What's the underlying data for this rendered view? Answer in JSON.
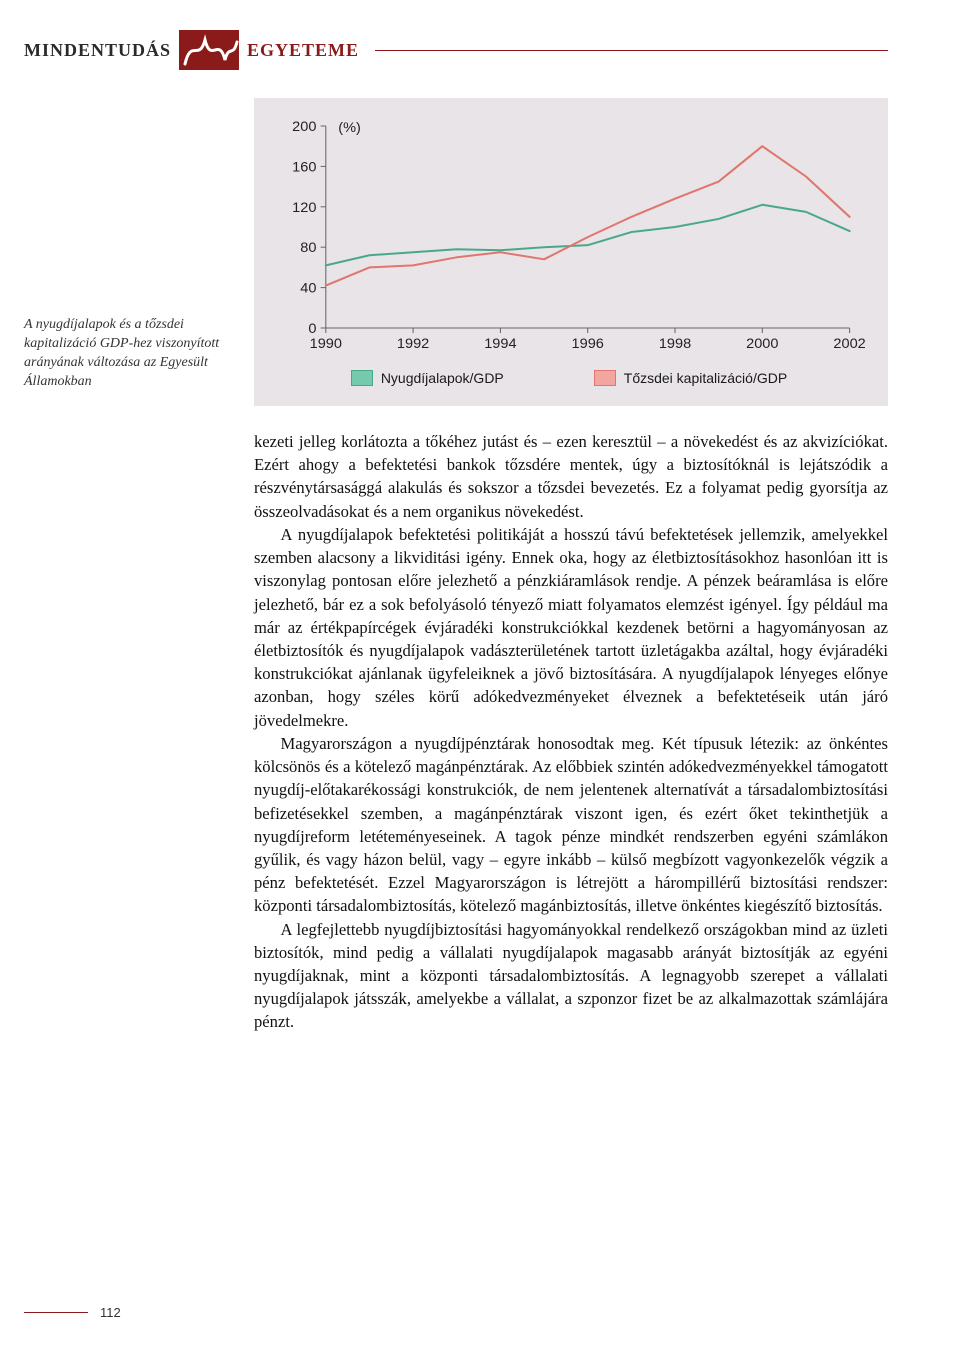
{
  "header": {
    "left": "MINDENTUDÁS",
    "right": "EGYETEME"
  },
  "caption": "A nyugdíjalapok és a tőzsdei kapitalizáció GDP-hez viszonyított arányának változása az Egyesült Államokban",
  "chart": {
    "type": "line",
    "y_label": "(%)",
    "y_ticks": [
      0,
      40,
      80,
      120,
      160,
      200
    ],
    "ylim": [
      0,
      200
    ],
    "x_ticks": [
      1990,
      1992,
      1994,
      1996,
      1998,
      2000,
      2002
    ],
    "x_years": [
      1990,
      1991,
      1992,
      1993,
      1994,
      1995,
      1996,
      1997,
      1998,
      1999,
      2000,
      2001,
      2002
    ],
    "series": [
      {
        "name": "Nyugdíjalapok/GDP",
        "color": "#4aa88a",
        "line_width": 2,
        "values": [
          62,
          72,
          75,
          78,
          77,
          80,
          82,
          95,
          100,
          108,
          122,
          115,
          96
        ]
      },
      {
        "name": "Tőzsdei kapitalizáció/GDP",
        "color": "#e0766e",
        "line_width": 2,
        "values": [
          42,
          60,
          62,
          70,
          75,
          68,
          90,
          110,
          128,
          145,
          180,
          150,
          110
        ]
      }
    ],
    "legend": [
      {
        "label": "Nyugdíjalapok/GDP",
        "fill": "#75c9ad",
        "stroke": "#4aa88a"
      },
      {
        "label": "Tőzsdei kapitalizáció/GDP",
        "fill": "#f1a7a0",
        "stroke": "#e0766e"
      }
    ],
    "background_color": "#e9e4e7",
    "axis_color": "#666666",
    "tick_font_size": 14,
    "tick_font_family": "Arial"
  },
  "paragraphs": [
    "kezeti jelleg korlátozta a tőkéhez jutást és – ezen keresztül – a növekedést és az akvizíciókat. Ezért ahogy a befektetési bankok tőzsdére mentek, úgy a biztosítóknál is lejátszódik a részvénytársasággá alakulás és sokszor a tőzsdei bevezetés. Ez a folyamat pedig gyorsítja az összeolvadásokat és a nem organikus növekedést.",
    "A nyugdíjalapok befektetési politikáját a hosszú távú befektetések jellemzik, amelyekkel szemben alacsony a likviditási igény. Ennek oka, hogy az életbiztosításokhoz hasonlóan itt is viszonylag pontosan előre jelezhető a pénzkiáramlások rendje. A pénzek beáramlása is előre jelezhető, bár ez a sok befolyásoló tényező miatt folyamatos elemzést igényel. Így például ma már az értékpapírcégek évjáradéki konstrukciókkal kezdenek betörni a hagyományosan az életbiztosítók és nyugdíjalapok vadászterületének tartott üzletágakba azáltal, hogy évjáradéki konstrukciókat ajánlanak ügyfeleiknek a jövő biztosítására. A nyugdíjalapok lényeges előnye azonban, hogy széles körű adókedvezményeket élveznek a befektetéseik után járó jövedelmekre.",
    "Magyarországon a nyugdíjpénztárak honosodtak meg. Két típusuk létezik: az önkéntes kölcsönös és a kötelező magánpénztárak. Az előbbiek szintén adókedvezményekkel támogatott nyugdíj-előtakarékossági konstrukciók, de nem jelentenek alternatívát a társadalombiztosítási befizetésekkel szemben, a magánpénztárak viszont igen, és ezért őket tekinthetjük a nyugdíjreform letéteményeseinek. A tagok pénze mindkét rendszerben egyéni számlákon gyűlik, és vagy házon belül, vagy – egyre inkább – külső megbízott vagyonkezelők végzik a pénz befektetését. Ezzel Magyarországon is létrejött a hárompillérű biztosítási rendszer: központi társadalombiztosítás, kötelező magánbiztosítás, illetve önkéntes kiegészítő biztosítás.",
    "A legfejlettebb nyugdíjbiztosítási hagyományokkal rendelkező országokban mind az üzleti biztosítók, mind pedig a vállalati nyugdíjalapok magasabb arányát biztosítják az egyéni nyugdíjaknak, mint a központi társadalombiztosítás. A legnagyobb szerepet a vállalati nyugdíjalapok játsszák, amelyekbe a vállalat, a szponzor fizet be az alkalmazottak számlájára pénzt."
  ],
  "page_number": "112"
}
